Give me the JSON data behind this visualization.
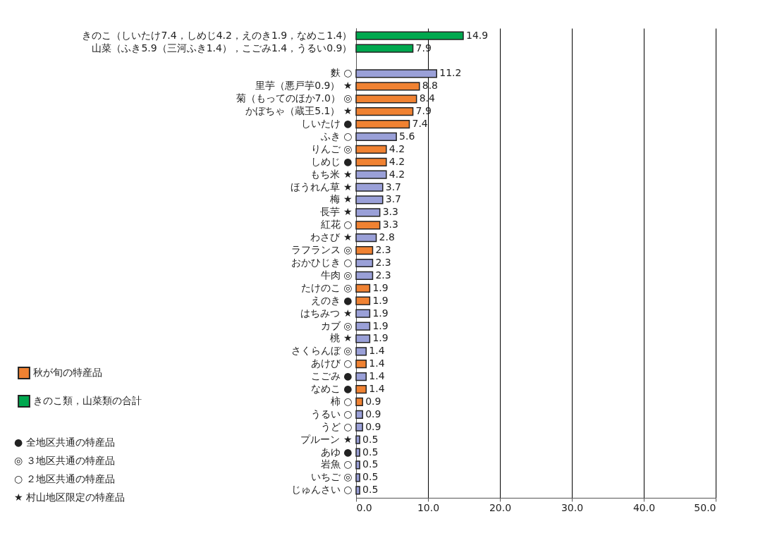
{
  "chart_data": {
    "type": "bar",
    "orientation": "horizontal",
    "categories": [
      "きのこ（しいたけ7.4，しめじ4.2，えのき1.9，なめこ1.4）",
      "山菜（ふき5.9（三河ふき1.4），こごみ1.4，うるい0.9）",
      null,
      "麩 ○",
      "里芋（悪戸芋0.9） ★",
      "菊（もってのほか7.0） ◎",
      "かぼちゃ（蔵王5.1） ★",
      "しいたけ ●",
      "ふき ○",
      "りんご ◎",
      "しめじ ●",
      "もち米 ★",
      "ほうれん草 ★",
      "梅 ★",
      "長芋 ★",
      "紅花 ○",
      "わさび ★",
      "ラフランス ◎",
      "おかひじき ○",
      "牛肉 ◎",
      "たけのこ ◎",
      "えのき ●",
      "はちみつ ★",
      "カブ ◎",
      "桃 ★",
      "さくらんぼ ◎",
      "あけび ○",
      "こごみ ●",
      "なめこ ●",
      "柿 ○",
      "うるい ○",
      "うど ○",
      "プルーン ★",
      "あゆ ●",
      "岩魚 ○",
      "いちご ◎",
      "じゅんさい ○"
    ],
    "series": [
      {
        "name": "秋が旬の特産品",
        "color": "#f08232",
        "values": [
          null,
          null,
          null,
          null,
          8.8,
          8.4,
          7.9,
          7.4,
          null,
          4.2,
          4.2,
          null,
          null,
          null,
          null,
          3.3,
          null,
          2.3,
          null,
          null,
          1.9,
          1.9,
          null,
          null,
          null,
          null,
          1.4,
          null,
          1.4,
          0.9,
          null,
          null,
          null,
          null,
          null,
          null,
          null
        ]
      },
      {
        "name": "きのこ類，山菜類の合計",
        "color": "#00a84f",
        "values": [
          14.9,
          7.9,
          null,
          null,
          null,
          null,
          null,
          null,
          null,
          null,
          null,
          null,
          null,
          null,
          null,
          null,
          null,
          null,
          null,
          null,
          null,
          null,
          null,
          null,
          null,
          null,
          null,
          null,
          null,
          null,
          null,
          null,
          null,
          null,
          null,
          null,
          null
        ]
      },
      {
        "color": "#9aa0d8",
        "values": [
          null,
          null,
          null,
          11.2,
          null,
          null,
          null,
          null,
          5.6,
          null,
          null,
          4.2,
          3.7,
          3.7,
          3.3,
          null,
          2.8,
          null,
          2.3,
          2.3,
          null,
          null,
          1.9,
          1.9,
          1.9,
          1.4,
          null,
          1.4,
          null,
          null,
          0.9,
          0.9,
          0.5,
          0.5,
          0.5,
          0.5,
          0.5
        ]
      }
    ],
    "xlim": [
      0,
      50
    ],
    "xticks": [
      {
        "value": 0,
        "label": "0.0"
      },
      {
        "value": 10,
        "label": "10.0"
      },
      {
        "value": 20,
        "label": "20.0"
      },
      {
        "value": 30,
        "label": "30.0"
      },
      {
        "value": 40,
        "label": "40.0"
      },
      {
        "value": 50,
        "label": "50.0"
      }
    ],
    "grid": "x",
    "legend": "bottom left",
    "data_labels": true,
    "annotations": [
      "● 全地区共通の特産品",
      "◎ ３地区共通の特産品",
      "○ ２地区共通の特産品",
      "★ 村山地区限定の特産品"
    ]
  }
}
